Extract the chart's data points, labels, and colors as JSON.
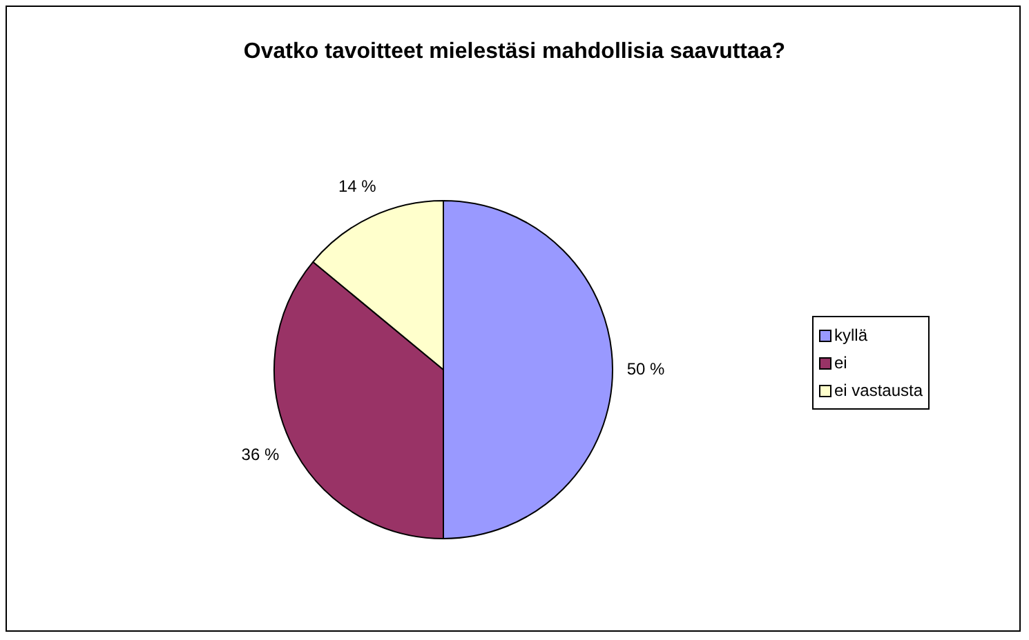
{
  "chart_data": {
    "type": "pie",
    "title": "Ovatko tavoitteet mielestäsi mahdollisia saavuttaa?",
    "categories": [
      "kyllä",
      "ei",
      "ei vastausta"
    ],
    "values": [
      50,
      36,
      14
    ],
    "colors": [
      "#9999ff",
      "#993366",
      "#ffffcc"
    ],
    "value_labels": [
      "50 %",
      "36 %",
      "14 %"
    ],
    "legend": "right"
  }
}
